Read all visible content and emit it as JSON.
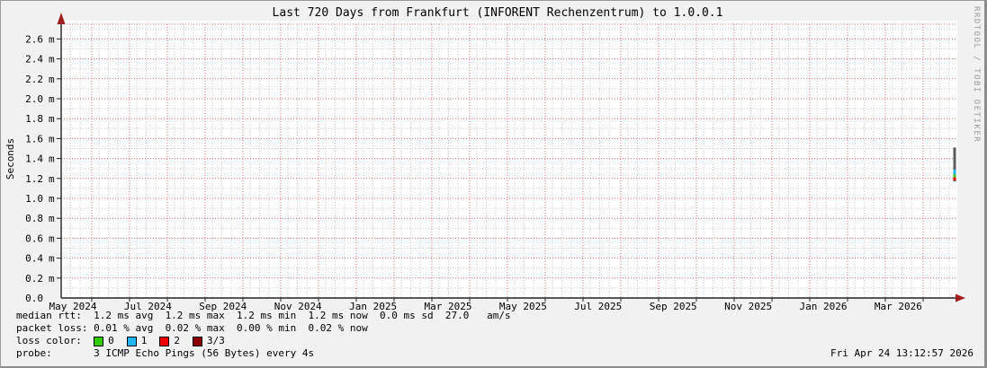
{
  "window": {
    "title": "Last 720 Days from Frankfurt (INFORENT Rechenzentrum) to 1.0.0.1"
  },
  "watermark": "RRDTOOL / TOBI OETIKER",
  "chart_data": {
    "type": "line",
    "title": "Last 720 Days from Frankfurt (INFORENT Rechenzentrum) to 1.0.0.1",
    "ylabel": "Seconds",
    "xlabel": "",
    "ylim": [
      0.0,
      2.75
    ],
    "y_unit_suffix": "m",
    "y_major_step": 0.2,
    "y_minor_step": 0.1,
    "grid": {
      "major_color": "#e07070",
      "minor_color": "#cccccc",
      "on": true
    },
    "y_ticks": [
      {
        "v": "0.0",
        "u": "",
        "value": 0.0
      },
      {
        "v": "0.2",
        "u": "m",
        "value": 0.2
      },
      {
        "v": "0.4",
        "u": "m",
        "value": 0.4
      },
      {
        "v": "0.6",
        "u": "m",
        "value": 0.6
      },
      {
        "v": "0.8",
        "u": "m",
        "value": 0.8
      },
      {
        "v": "1.0",
        "u": "m",
        "value": 1.0
      },
      {
        "v": "1.2",
        "u": "m",
        "value": 1.2
      },
      {
        "v": "1.4",
        "u": "m",
        "value": 1.4
      },
      {
        "v": "1.6",
        "u": "m",
        "value": 1.6
      },
      {
        "v": "1.8",
        "u": "m",
        "value": 1.8
      },
      {
        "v": "2.0",
        "u": "m",
        "value": 2.0
      },
      {
        "v": "2.2",
        "u": "m",
        "value": 2.2
      },
      {
        "v": "2.4",
        "u": "m",
        "value": 2.4
      },
      {
        "v": "2.6",
        "u": "m",
        "value": 2.6
      }
    ],
    "x_tick_labels": [
      "May 2024",
      "Jul 2024",
      "Sep 2024",
      "Nov 2024",
      "Jan 2025",
      "Mar 2025",
      "May 2025",
      "Jul 2025",
      "Sep 2025",
      "Nov 2025",
      "Jan 2026",
      "Mar 2026"
    ],
    "x_range_days": 720,
    "series": [
      {
        "name": "median rtt (smokeping)",
        "note": "data present only at the right edge (now)",
        "median_ms": 1.2,
        "x_frac": 0.997,
        "segments": [
          {
            "name": "smoke",
            "from_ms": 1.17,
            "to_ms": 1.51,
            "color": "#5b5b5b",
            "width": 3
          },
          {
            "name": "loss-1",
            "from_ms": 1.24,
            "to_ms": 1.29,
            "color": "#20b4f0",
            "width": 3
          },
          {
            "name": "loss-0",
            "from_ms": 1.21,
            "to_ms": 1.24,
            "color": "#32cd00",
            "width": 3
          },
          {
            "name": "loss-2",
            "from_ms": 1.18,
            "to_ms": 1.21,
            "color": "#ee0000",
            "width": 3
          }
        ]
      }
    ],
    "stats": {
      "median_rtt": {
        "avg": "1.2 ms",
        "max": "1.2 ms",
        "min": "1.2 ms",
        "now": "1.2 ms",
        "sd": "0.0 ms",
        "am_s": "27.0"
      },
      "packet_loss": {
        "avg": "0.01 %",
        "max": "0.02 %",
        "min": "0.00 %",
        "now": "0.02 %"
      }
    }
  },
  "footer": {
    "median_line": "median rtt:  1.2 ms avg  1.2 ms max  1.2 ms min  1.2 ms now  0.0 ms sd  27.0   am/s",
    "loss_line": "packet loss: 0.01 % avg  0.02 % max  0.00 % min  0.02 % now",
    "loss_color_label": "loss color:  ",
    "loss_levels": [
      {
        "label": "0",
        "color": "#32cd00"
      },
      {
        "label": "1",
        "color": "#20b4f0"
      },
      {
        "label": "2",
        "color": "#ee0000"
      },
      {
        "label": "3/3",
        "color": "#8b0000"
      }
    ],
    "probe_line": "probe:       3 ICMP Echo Pings (56 Bytes) every 4s",
    "timestamp": "Fri Apr 24 13:12:57 2026"
  }
}
